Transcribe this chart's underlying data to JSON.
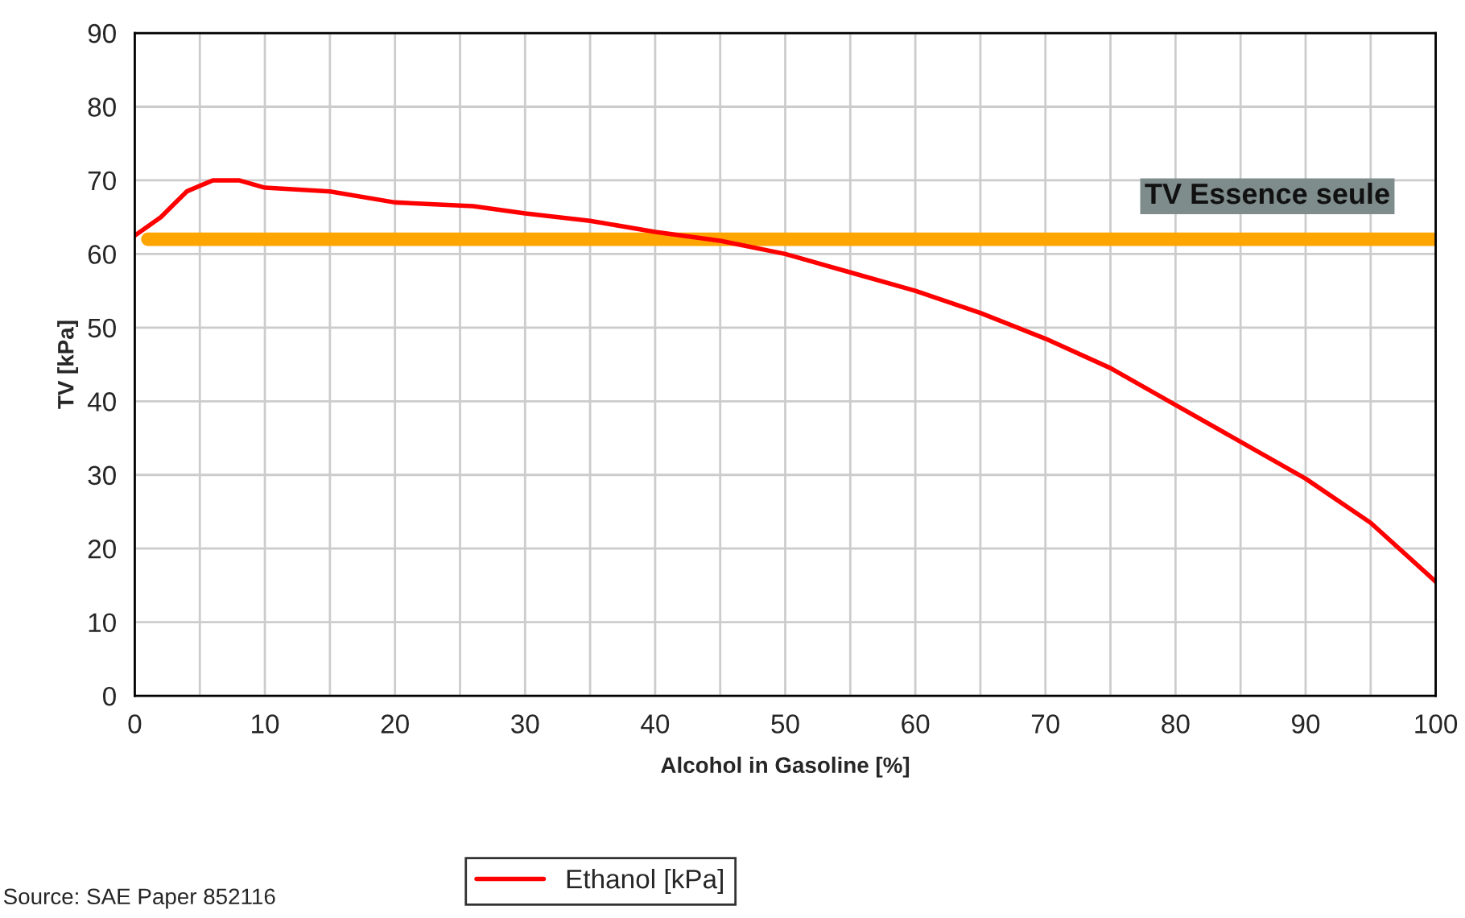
{
  "chart_data": {
    "type": "line",
    "xlabel": "Alcohol in Gasoline [%]",
    "ylabel": "TV [kPa]",
    "x": [
      0,
      2,
      4,
      6,
      8,
      10,
      15,
      20,
      26,
      30,
      35,
      40,
      45,
      50,
      55,
      60,
      65,
      70,
      75,
      80,
      85,
      90,
      95,
      100
    ],
    "series": [
      {
        "name": "Ethanol [kPa]",
        "color": "#ff0000",
        "values": [
          62.5,
          65,
          68.5,
          70,
          70,
          69,
          68.5,
          67,
          66.5,
          65.5,
          64.5,
          63,
          61.8,
          60,
          57.5,
          55,
          52,
          48.5,
          44.5,
          39.5,
          34.5,
          29.5,
          23.5,
          15.5
        ]
      }
    ],
    "xlim": [
      0,
      100
    ],
    "ylim": [
      0,
      90
    ],
    "xticks": [
      0,
      {
        "value": 5,
        "label": null
      },
      10,
      {
        "value": 15,
        "label": null
      },
      20,
      {
        "value": 25,
        "label": null
      },
      30,
      {
        "value": 35,
        "label": null
      },
      40,
      {
        "value": 45,
        "label": null
      },
      50,
      {
        "value": 55,
        "label": null
      },
      60,
      {
        "value": 65,
        "label": null
      },
      70,
      {
        "value": 75,
        "label": null
      },
      80,
      {
        "value": 85,
        "label": null
      },
      90,
      {
        "value": 95,
        "label": null
      },
      100
    ],
    "yticks": [
      0,
      10,
      20,
      30,
      40,
      50,
      60,
      70,
      80,
      90
    ],
    "ref_lines": [
      {
        "axis": "y",
        "value": 62,
        "label": "TV Essence seule",
        "color": "#ffa500"
      }
    ],
    "annotations": [
      "Source: SAE Paper 852116"
    ],
    "grid": true,
    "legend": "bottom",
    "marker": "none",
    "line_style": "solid"
  }
}
